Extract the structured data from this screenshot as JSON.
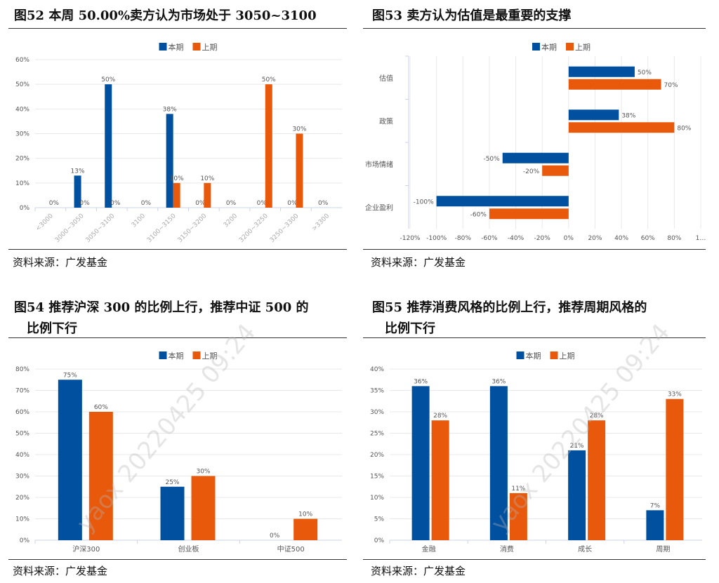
{
  "colors": {
    "current": "#0050A0",
    "previous": "#E8590C",
    "grid": "#E8E8E8",
    "axis": "#C9D3EA"
  },
  "watermark": "yaox 20220425 09:24",
  "source": "资料来源：广发基金",
  "chart_data": [
    {
      "type": "bar",
      "orientation": "vertical",
      "title": "图52  本周 50.00%卖方认为市场处于 3050~3100",
      "legend": [
        "本期",
        "上期"
      ],
      "legend_position": "top",
      "categories": [
        "<3000",
        "3000~3050",
        "3050~3100",
        "3100",
        "3100~3150",
        "3150~3200",
        "3200",
        "3200~3250",
        "3250~3300",
        ">3300"
      ],
      "series": [
        {
          "name": "本期",
          "values": [
            0,
            13,
            50,
            0,
            38,
            0,
            0,
            0,
            0,
            0
          ],
          "labels": [
            "",
            "13%",
            "50%",
            "",
            "38%",
            "0%",
            "0%",
            "0%",
            "0%",
            "0%"
          ]
        },
        {
          "name": "上期",
          "values": [
            0,
            0,
            0,
            0,
            10,
            10,
            0,
            50,
            30,
            0
          ],
          "labels": [
            "0%",
            "0%",
            "0%",
            "0%",
            "10%",
            "10%",
            "",
            "50%",
            "30%",
            ""
          ]
        }
      ],
      "yticks": [
        "0%",
        "10%",
        "20%",
        "30%",
        "40%",
        "50%",
        "60%"
      ],
      "ylim": [
        0,
        60
      ],
      "grid": true
    },
    {
      "type": "bar",
      "orientation": "horizontal",
      "title": "图53  卖方认为估值是最重要的支撑",
      "legend": [
        "本期",
        "上期"
      ],
      "legend_position": "top",
      "categories": [
        "估值",
        "政策",
        "市场情绪",
        "企业盈利"
      ],
      "series": [
        {
          "name": "本期",
          "values": [
            50,
            38,
            -50,
            -100
          ],
          "labels": [
            "50%",
            "38%",
            "-50%",
            "-100%"
          ]
        },
        {
          "name": "上期",
          "values": [
            70,
            80,
            -20,
            -60
          ],
          "labels": [
            "70%",
            "80%",
            "-20%",
            "-60%"
          ]
        }
      ],
      "xticks": [
        "-120%",
        "-100%",
        "-80%",
        "-60%",
        "-40%",
        "-20%",
        "0%",
        "20%",
        "40%",
        "60%",
        "80%",
        "1…"
      ],
      "xlim": [
        -120,
        100
      ],
      "grid": true
    },
    {
      "type": "bar",
      "orientation": "vertical",
      "title": "图54  推荐沪深 300 的比例上行，推荐中证 500 的",
      "title2": "比例下行",
      "legend": [
        "本期",
        "上期"
      ],
      "legend_position": "top",
      "categories": [
        "沪深300",
        "创业板",
        "中证500"
      ],
      "series": [
        {
          "name": "本期",
          "values": [
            75,
            25,
            0
          ],
          "labels": [
            "75%",
            "25%",
            "0%"
          ]
        },
        {
          "name": "上期",
          "values": [
            60,
            30,
            10
          ],
          "labels": [
            "60%",
            "30%",
            "10%"
          ]
        }
      ],
      "yticks": [
        "0%",
        "10%",
        "20%",
        "30%",
        "40%",
        "50%",
        "60%",
        "70%",
        "80%"
      ],
      "ylim": [
        0,
        80
      ],
      "grid": true
    },
    {
      "type": "bar",
      "orientation": "vertical",
      "title": "图55  推荐消费风格的比例上行，推荐周期风格的",
      "title2": "比例下行",
      "legend": [
        "本期",
        "上期"
      ],
      "legend_position": "top",
      "categories": [
        "金融",
        "消费",
        "成长",
        "周期"
      ],
      "series": [
        {
          "name": "本期",
          "values": [
            36,
            36,
            21,
            7
          ],
          "labels": [
            "36%",
            "36%",
            "21%",
            "7%"
          ]
        },
        {
          "name": "上期",
          "values": [
            28,
            11,
            28,
            33
          ],
          "labels": [
            "28%",
            "11%",
            "28%",
            "33%"
          ]
        }
      ],
      "yticks": [
        "0%",
        "5%",
        "10%",
        "15%",
        "20%",
        "25%",
        "30%",
        "35%",
        "40%"
      ],
      "ylim": [
        0,
        40
      ],
      "grid": true
    }
  ]
}
